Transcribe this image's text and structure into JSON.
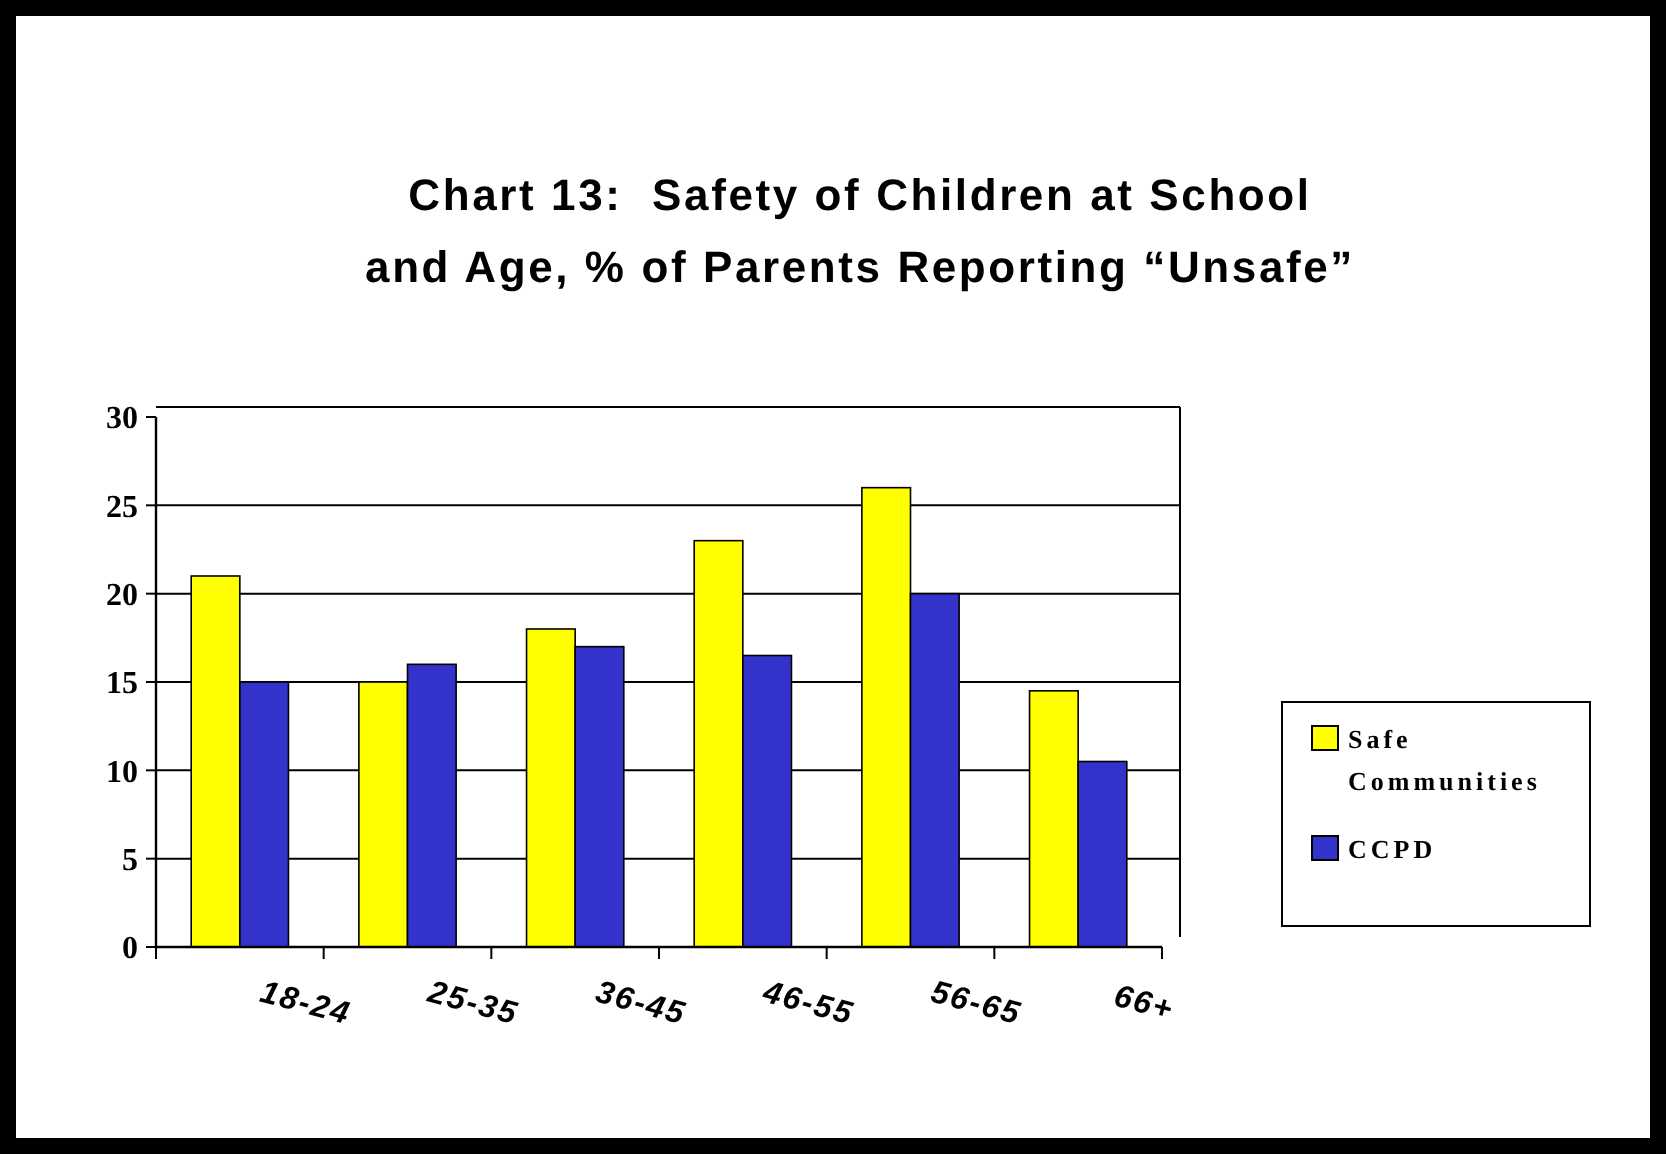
{
  "chart_data": {
    "type": "bar",
    "title": "Chart 13:  Safety of Children at School\nand Age, % of Parents Reporting “Unsafe”",
    "categories": [
      "18-24",
      "25-35",
      "36-45",
      "46-55",
      "56-65",
      "66+"
    ],
    "series": [
      {
        "name": "Safe Communities",
        "color": "#ffff00",
        "values": [
          21,
          15,
          18,
          23,
          26,
          14.5
        ]
      },
      {
        "name": "CCPD",
        "color": "#3333cc",
        "values": [
          15,
          16,
          17,
          16.5,
          20,
          10.5
        ]
      }
    ],
    "ylim": [
      0,
      30
    ],
    "yticks": [
      0,
      5,
      10,
      15,
      20,
      25,
      30
    ],
    "grid": "y",
    "legend": "right"
  }
}
